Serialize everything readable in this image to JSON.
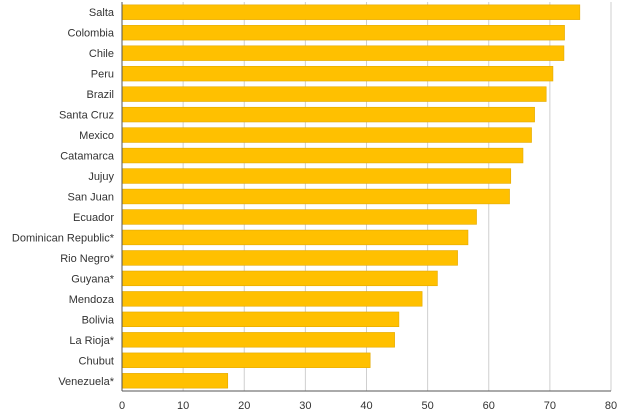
{
  "chart_data": {
    "type": "bar",
    "orientation": "horizontal",
    "categories": [
      "Salta",
      "Colombia",
      "Chile",
      "Peru",
      "Brazil",
      "Santa Cruz",
      "Mexico",
      "Catamarca",
      "Jujuy",
      "San Juan",
      "Ecuador",
      "Dominican Republic*",
      "Rio Negro*",
      "Guyana*",
      "Mendoza",
      "Bolivia",
      "La Rioja*",
      "Chubut",
      "Venezuela*"
    ],
    "values": [
      74.9,
      72.4,
      72.3,
      70.5,
      69.4,
      67.5,
      67.0,
      65.6,
      63.6,
      63.4,
      58.0,
      56.6,
      54.9,
      51.6,
      49.1,
      45.3,
      44.6,
      40.6,
      17.3
    ],
    "xlim": [
      0,
      80
    ],
    "xticks": [
      0,
      10,
      20,
      30,
      40,
      50,
      60,
      70,
      80
    ],
    "title": "",
    "xlabel": "",
    "ylabel": "",
    "grid": true,
    "colors": {
      "bar": "#FFC000",
      "bar_edge": "#E3A900",
      "grid": "#cfcfcf",
      "axis": "#555555"
    }
  }
}
